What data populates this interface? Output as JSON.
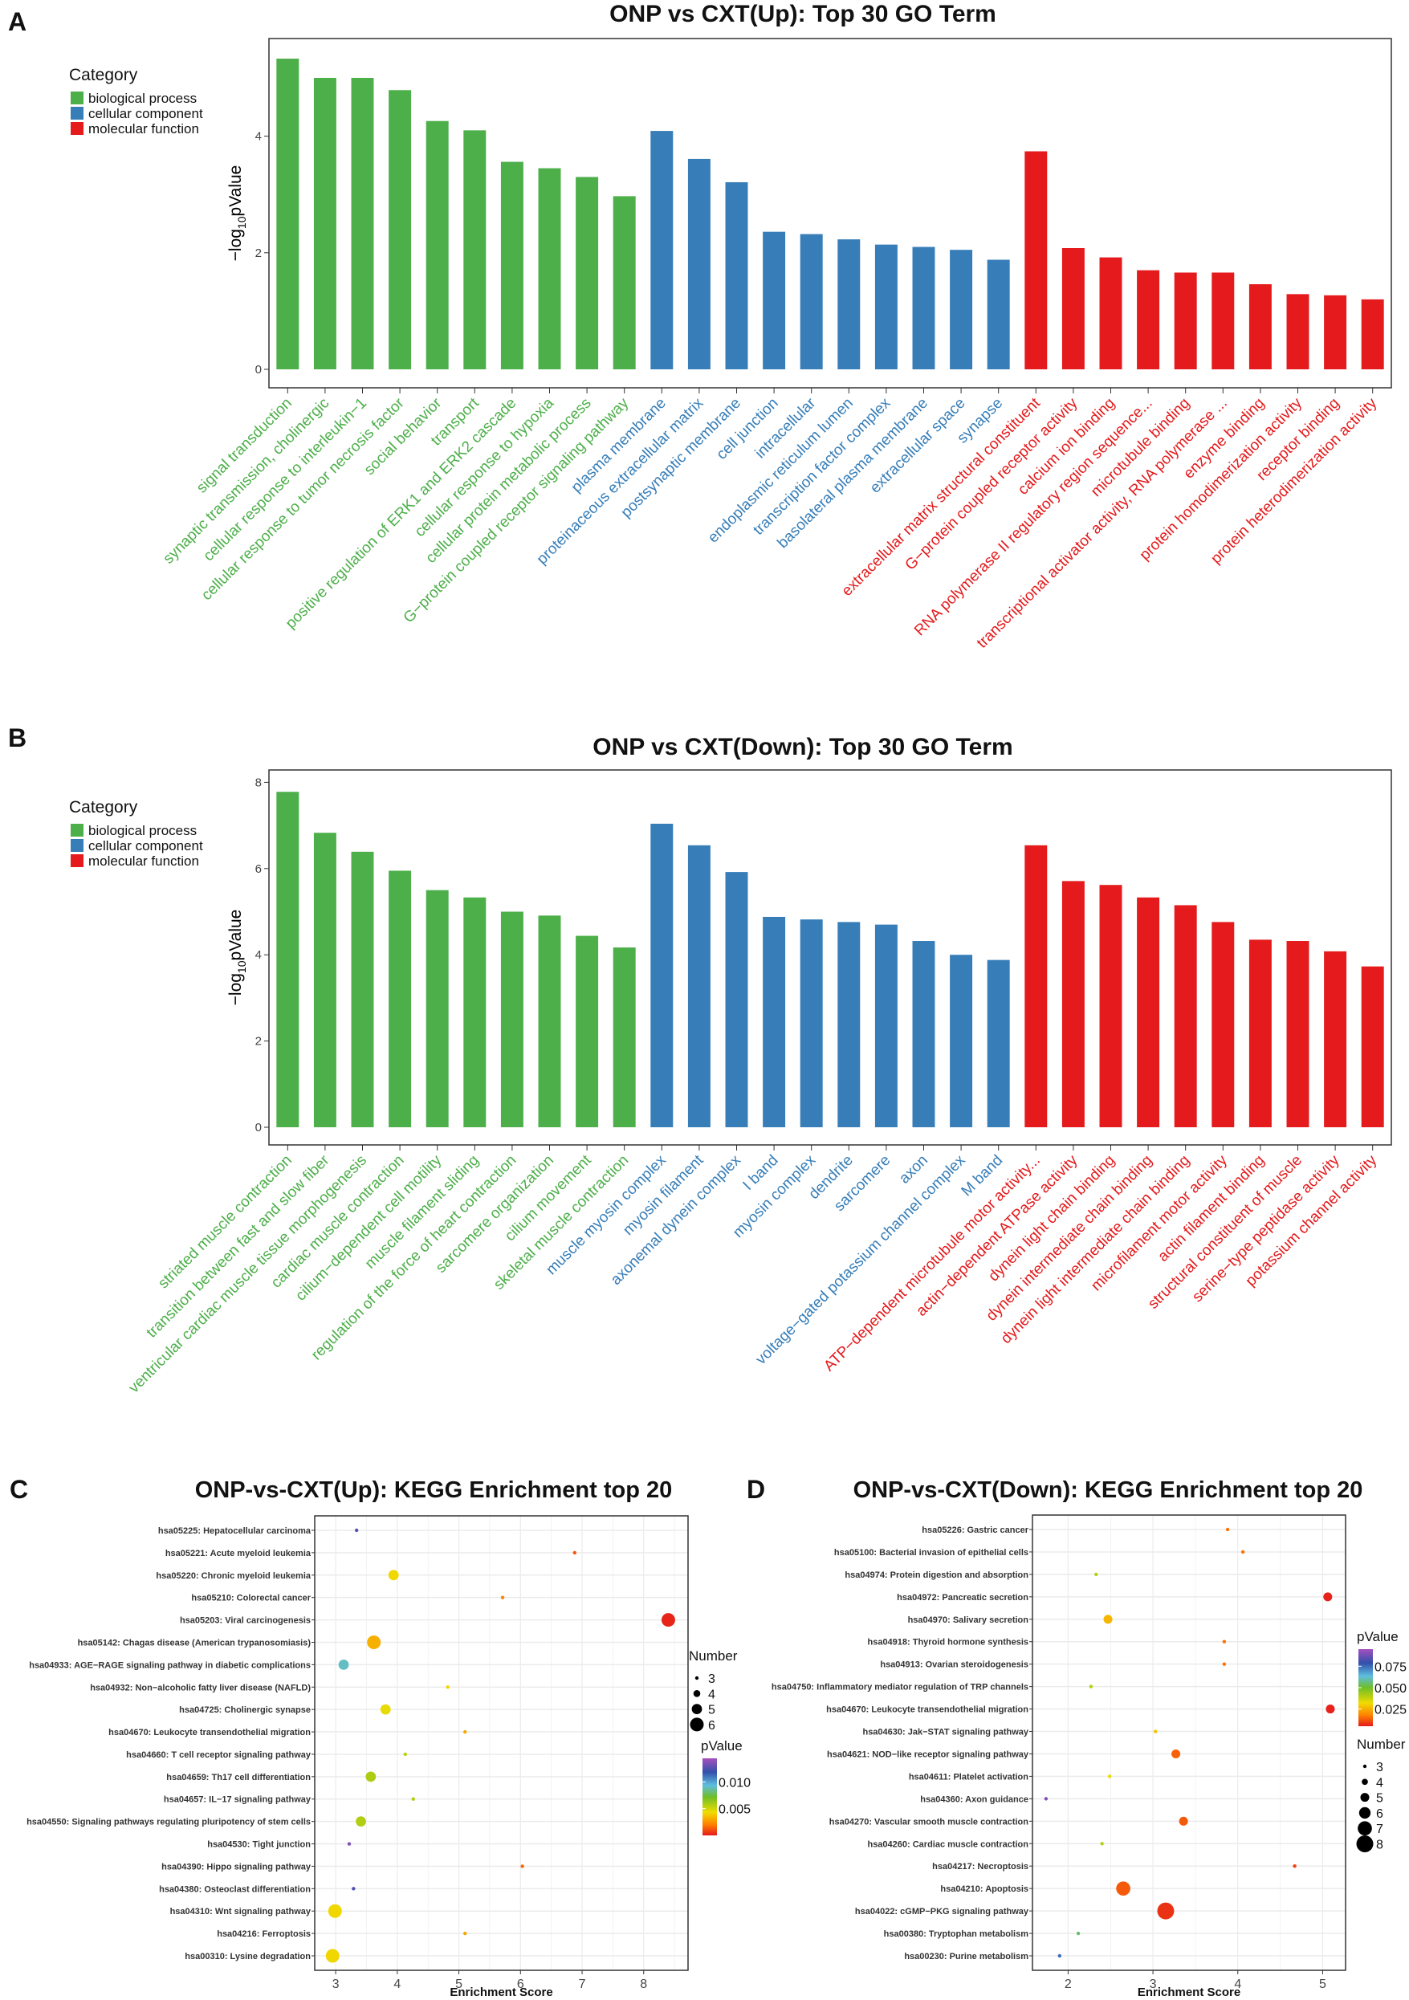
{
  "colors": {
    "biological process": "#4daf4a",
    "cellular component": "#377eb8",
    "molecular function": "#e41a1c",
    "axis": "#333333",
    "grid": "#ebebeb"
  },
  "chart_data": [
    {
      "type": "bar",
      "panel": "A",
      "title": "ONP vs CXT(Up): Top 30 GO Term",
      "ylabel": "−log10pValue",
      "ylim": [
        0,
        5.6
      ],
      "yticks": [
        0,
        2,
        4
      ],
      "legend": {
        "title": "Category",
        "entries": [
          "biological process",
          "cellular component",
          "molecular function"
        ],
        "placement": "top-left"
      },
      "categories": [
        "signal transduction",
        "synaptic transmission, cholinergic",
        "cellular response to interleukin−1",
        "cellular response to tumor necrosis factor",
        "social behavior",
        "transport",
        "positive regulation of ERK1 and ERK2 cascade",
        "cellular response to hypoxia",
        "cellular protein metabolic process",
        "G−protein coupled receptor signaling pathway",
        "plasma membrane",
        "proteinaceous extracellular matrix",
        "postsynaptic membrane",
        "cell junction",
        "intracellular",
        "endoplasmic reticulum lumen",
        "transcription factor complex",
        "basolateral plasma membrane",
        "extracellular space",
        "synapse",
        "extracellular matrix structural constituent",
        "G−protein coupled receptor activity",
        "calcium ion binding",
        "RNA polymerase II regulatory region sequence...",
        "microtubule binding",
        "transcriptional activator activity, RNA polymerase ...",
        "enzyme binding",
        "protein homodimerization activity",
        "receptor binding",
        "protein heterodimerization activity"
      ],
      "groups": [
        "biological process",
        "biological process",
        "biological process",
        "biological process",
        "biological process",
        "biological process",
        "biological process",
        "biological process",
        "biological process",
        "biological process",
        "cellular component",
        "cellular component",
        "cellular component",
        "cellular component",
        "cellular component",
        "cellular component",
        "cellular component",
        "cellular component",
        "cellular component",
        "cellular component",
        "molecular function",
        "molecular function",
        "molecular function",
        "molecular function",
        "molecular function",
        "molecular function",
        "molecular function",
        "molecular function",
        "molecular function",
        "molecular function"
      ],
      "values": [
        5.33,
        5.0,
        5.0,
        4.79,
        4.26,
        4.1,
        3.56,
        3.45,
        3.3,
        2.97,
        4.09,
        3.61,
        3.21,
        2.36,
        2.32,
        2.23,
        2.14,
        2.1,
        2.05,
        1.88,
        3.74,
        2.08,
        1.92,
        1.7,
        1.66,
        1.66,
        1.46,
        1.29,
        1.27,
        1.2
      ]
    },
    {
      "type": "bar",
      "panel": "B",
      "title": "ONP vs CXT(Down): Top 30 GO Term",
      "ylabel": "−log10pValue",
      "ylim": [
        0,
        8.2
      ],
      "yticks": [
        0,
        2,
        4,
        6,
        8
      ],
      "legend": {
        "title": "Category",
        "entries": [
          "biological process",
          "cellular component",
          "molecular function"
        ],
        "placement": "top-left"
      },
      "categories": [
        "striated muscle contraction",
        "transition between fast and slow fiber",
        "ventricular cardiac muscle tissue morphogenesis",
        "cardiac muscle contraction",
        "cilium−dependent cell motility",
        "muscle filament sliding",
        "regulation of the force of heart contraction",
        "sarcomere organization",
        "cilium movement",
        "skeletal muscle contraction",
        "muscle myosin complex",
        "myosin filament",
        "axonemal dynein complex",
        "I band",
        "myosin complex",
        "dendrite",
        "sarcomere",
        "axon",
        "voltage−gated potassium channel complex",
        "M band",
        "ATP−dependent microtubule motor activity...",
        "actin−dependent ATPase activity",
        "dynein light chain binding",
        "dynein intermediate chain binding",
        "dynein light intermediate chain binding",
        "microfilament motor activity",
        "actin filament binding",
        "structural constituent of muscle",
        "serine−type peptidase activity",
        "potassium channel activity"
      ],
      "groups": [
        "biological process",
        "biological process",
        "biological process",
        "biological process",
        "biological process",
        "biological process",
        "biological process",
        "biological process",
        "biological process",
        "biological process",
        "cellular component",
        "cellular component",
        "cellular component",
        "cellular component",
        "cellular component",
        "cellular component",
        "cellular component",
        "cellular component",
        "cellular component",
        "cellular component",
        "molecular function",
        "molecular function",
        "molecular function",
        "molecular function",
        "molecular function",
        "molecular function",
        "molecular function",
        "molecular function",
        "molecular function",
        "molecular function"
      ],
      "values": [
        7.78,
        6.83,
        6.39,
        5.95,
        5.5,
        5.33,
        5.0,
        4.91,
        4.44,
        4.17,
        7.04,
        6.54,
        5.92,
        4.88,
        4.82,
        4.76,
        4.7,
        4.32,
        4.0,
        3.88,
        6.54,
        5.71,
        5.62,
        5.33,
        5.15,
        4.76,
        4.35,
        4.32,
        4.08,
        3.73
      ]
    },
    {
      "type": "scatter",
      "panel": "C",
      "title": "ONP-vs-CXT(Up): KEGG Enrichment top 20",
      "xlabel": "Enrichment Score",
      "xlim": [
        2.66,
        8.72
      ],
      "xticks": [
        3,
        4,
        5,
        6,
        7,
        8
      ],
      "size_legend": {
        "title": "Number",
        "values": [
          3,
          4,
          5,
          6
        ]
      },
      "color_legend": {
        "title": "pValue",
        "range": [
          0,
          0.0144
        ],
        "ticks": [
          "0.010",
          "0.005"
        ],
        "tick_values": [
          0.01,
          0.005
        ]
      },
      "terms": [
        "hsa05225: Hepatocellular carcinoma",
        "hsa05221: Acute myeloid leukemia",
        "hsa05220: Chronic myeloid leukemia",
        "hsa05210: Colorectal cancer",
        "hsa05203: Viral carcinogenesis",
        "hsa05142: Chagas disease (American trypanosomiasis)",
        "hsa04933: AGE−RAGE signaling pathway in diabetic complications",
        "hsa04932: Non−alcoholic fatty liver disease (NAFLD)",
        "hsa04725: Cholinergic synapse",
        "hsa04670: Leukocyte transendothelial migration",
        "hsa04660: T cell receptor signaling pathway",
        "hsa04659: Th17 cell differentiation",
        "hsa04657: IL−17 signaling pathway",
        "hsa04550: Signaling pathways regulating pluripotency of stem cells",
        "hsa04530: Tight junction",
        "hsa04390: Hippo signaling pathway",
        "hsa04380: Osteoclast differentiation",
        "hsa04310: Wnt signaling pathway",
        "hsa04216: Ferroptosis",
        "hsa00310: Lysine degradation"
      ],
      "enrichment": [
        3.34,
        6.88,
        3.94,
        5.71,
        8.4,
        3.62,
        3.13,
        4.82,
        3.81,
        5.1,
        4.13,
        3.57,
        4.26,
        3.41,
        3.22,
        6.03,
        3.29,
        2.99,
        5.1,
        2.95
      ],
      "number": [
        3,
        3,
        5,
        3,
        6,
        6,
        5,
        3,
        5,
        3,
        3,
        5,
        3,
        5,
        3,
        3,
        3,
        6,
        3,
        6
      ],
      "pvalue": [
        0.0125,
        0.0012,
        0.0042,
        0.0022,
        0.0002,
        0.0032,
        0.009,
        0.0042,
        0.0045,
        0.003,
        0.0055,
        0.0058,
        0.0057,
        0.0057,
        0.0135,
        0.0015,
        0.0125,
        0.0042,
        0.003,
        0.0042
      ]
    },
    {
      "type": "scatter",
      "panel": "D",
      "title": "ONP-vs-CXT(Down): KEGG Enrichment top 20",
      "xlabel": "Enrichment Score",
      "xlim": [
        1.58,
        5.27
      ],
      "xticks": [
        2,
        3,
        4,
        5
      ],
      "size_legend": {
        "title": "Number",
        "values": [
          3,
          4,
          5,
          6,
          7,
          8
        ]
      },
      "color_legend": {
        "title": "pValue",
        "range": [
          0.005,
          0.095
        ],
        "ticks": [
          "0.075",
          "0.050",
          "0.025"
        ],
        "tick_values": [
          0.075,
          0.05,
          0.025
        ]
      },
      "terms": [
        "hsa05226: Gastric cancer",
        "hsa05100: Bacterial invasion of epithelial cells",
        "hsa04974: Protein digestion and absorption",
        "hsa04972: Pancreatic secretion",
        "hsa04970: Salivary secretion",
        "hsa04918: Thyroid hormone synthesis",
        "hsa04913: Ovarian steroidogenesis",
        "hsa04750: Inflammatory mediator regulation of TRP channels",
        "hsa04670: Leukocyte transendothelial migration",
        "hsa04630: Jak−STAT signaling pathway",
        "hsa04621: NOD−like receptor signaling pathway",
        "hsa04611: Platelet activation",
        "hsa04360: Axon guidance",
        "hsa04270: Vascular smooth muscle contraction",
        "hsa04260: Cardiac muscle contraction",
        "hsa04217: Necroptosis",
        "hsa04210: Apoptosis",
        "hsa04022: cGMP−PKG signaling pathway",
        "hsa00380: Tryptophan metabolism",
        "hsa00230: Purine metabolism"
      ],
      "enrichment": [
        3.88,
        4.06,
        2.33,
        5.06,
        2.47,
        3.84,
        3.84,
        2.27,
        5.09,
        3.03,
        3.27,
        2.49,
        1.74,
        3.36,
        2.4,
        4.67,
        2.65,
        3.15,
        2.12,
        1.9
      ],
      "number": [
        3,
        3,
        3,
        5,
        5,
        3,
        3,
        3,
        5,
        3,
        5,
        3,
        3,
        5,
        3,
        3,
        7,
        8,
        3,
        3
      ],
      "pvalue": [
        0.016,
        0.016,
        0.04,
        0.006,
        0.026,
        0.016,
        0.016,
        0.04,
        0.006,
        0.028,
        0.014,
        0.033,
        0.09,
        0.013,
        0.04,
        0.01,
        0.013,
        0.008,
        0.055,
        0.075
      ]
    }
  ]
}
